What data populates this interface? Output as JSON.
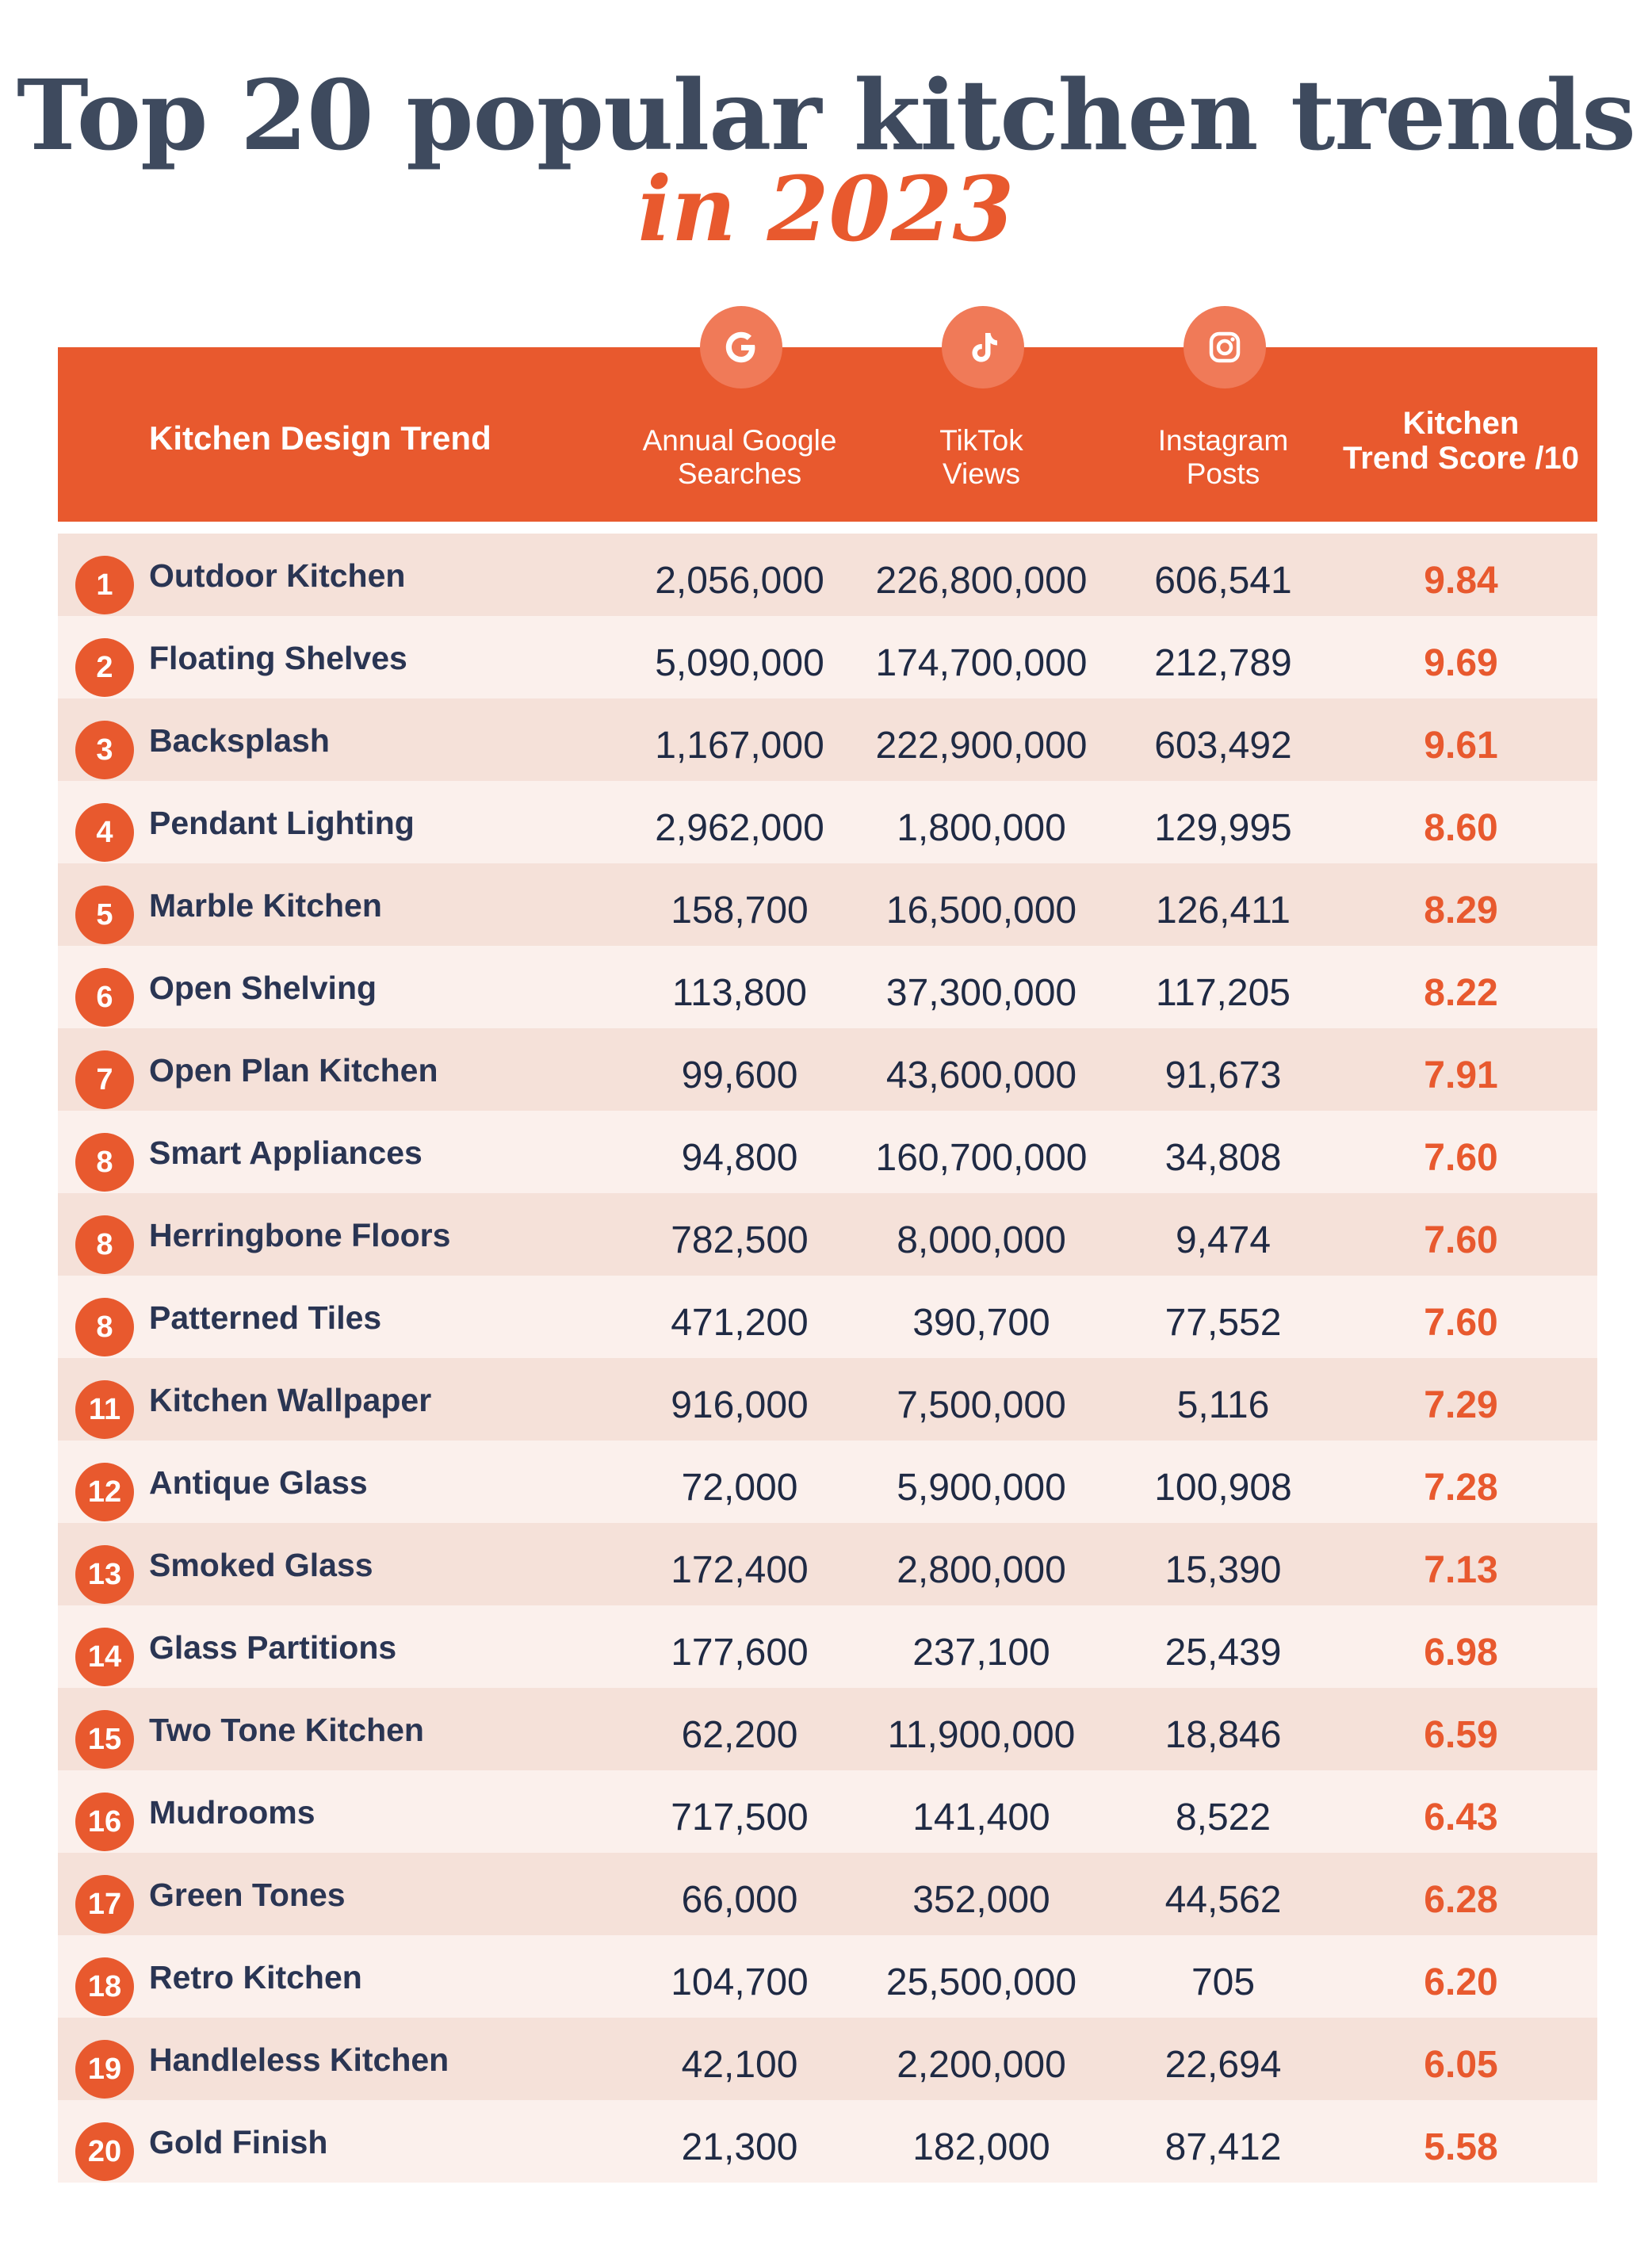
{
  "title": "Top 20 popular kitchen trends",
  "subtitle": "in 2023",
  "colors": {
    "accent": "#e8592e",
    "title": "#3e4a5e",
    "row_dark": "#f5e1d9",
    "row_light": "#fbf0ec"
  },
  "header": {
    "trend": "Kitchen Design Trend",
    "google_line1": "Annual Google",
    "google_line2": "Searches",
    "tiktok_line1": "TikTok",
    "tiktok_line2": "Views",
    "instagram_line1": "Instagram",
    "instagram_line2": "Posts",
    "score_line1": "Kitchen",
    "score_line2": "Trend Score /10",
    "icons": [
      "google-icon",
      "tiktok-icon",
      "instagram-icon"
    ]
  },
  "chart_data": {
    "type": "table",
    "title": "Top 20 popular kitchen trends",
    "subtitle": "in 2023",
    "columns": [
      "Kitchen Design Trend",
      "Annual Google Searches",
      "TikTok Views",
      "Instagram Posts",
      "Kitchen Trend Score /10"
    ],
    "rows": [
      {
        "rank": "1",
        "trend": "Outdoor Kitchen",
        "google": "2,056,000",
        "tiktok": "226,800,000",
        "instagram": "606,541",
        "score": "9.84"
      },
      {
        "rank": "2",
        "trend": "Floating Shelves",
        "google": "5,090,000",
        "tiktok": "174,700,000",
        "instagram": "212,789",
        "score": "9.69"
      },
      {
        "rank": "3",
        "trend": "Backsplash",
        "google": "1,167,000",
        "tiktok": "222,900,000",
        "instagram": "603,492",
        "score": "9.61"
      },
      {
        "rank": "4",
        "trend": "Pendant Lighting",
        "google": "2,962,000",
        "tiktok": "1,800,000",
        "instagram": "129,995",
        "score": "8.60"
      },
      {
        "rank": "5",
        "trend": "Marble Kitchen",
        "google": "158,700",
        "tiktok": "16,500,000",
        "instagram": "126,411",
        "score": "8.29"
      },
      {
        "rank": "6",
        "trend": "Open Shelving",
        "google": "113,800",
        "tiktok": "37,300,000",
        "instagram": "117,205",
        "score": "8.22"
      },
      {
        "rank": "7",
        "trend": "Open Plan Kitchen",
        "google": "99,600",
        "tiktok": "43,600,000",
        "instagram": "91,673",
        "score": "7.91"
      },
      {
        "rank": "8",
        "trend": "Smart Appliances",
        "google": "94,800",
        "tiktok": "160,700,000",
        "instagram": "34,808",
        "score": "7.60"
      },
      {
        "rank": "8",
        "trend": "Herringbone Floors",
        "google": "782,500",
        "tiktok": "8,000,000",
        "instagram": "9,474",
        "score": "7.60"
      },
      {
        "rank": "8",
        "trend": "Patterned Tiles",
        "google": "471,200",
        "tiktok": "390,700",
        "instagram": "77,552",
        "score": "7.60"
      },
      {
        "rank": "11",
        "trend": "Kitchen Wallpaper",
        "google": "916,000",
        "tiktok": "7,500,000",
        "instagram": "5,116",
        "score": "7.29"
      },
      {
        "rank": "12",
        "trend": "Antique Glass",
        "google": "72,000",
        "tiktok": "5,900,000",
        "instagram": "100,908",
        "score": "7.28"
      },
      {
        "rank": "13",
        "trend": "Smoked Glass",
        "google": "172,400",
        "tiktok": "2,800,000",
        "instagram": "15,390",
        "score": "7.13"
      },
      {
        "rank": "14",
        "trend": "Glass Partitions",
        "google": "177,600",
        "tiktok": "237,100",
        "instagram": "25,439",
        "score": "6.98"
      },
      {
        "rank": "15",
        "trend": "Two Tone Kitchen",
        "google": "62,200",
        "tiktok": "11,900,000",
        "instagram": "18,846",
        "score": "6.59"
      },
      {
        "rank": "16",
        "trend": "Mudrooms",
        "google": "717,500",
        "tiktok": "141,400",
        "instagram": "8,522",
        "score": "6.43"
      },
      {
        "rank": "17",
        "trend": "Green Tones",
        "google": "66,000",
        "tiktok": "352,000",
        "instagram": "44,562",
        "score": "6.28"
      },
      {
        "rank": "18",
        "trend": "Retro Kitchen",
        "google": "104,700",
        "tiktok": "25,500,000",
        "instagram": "705",
        "score": "6.20"
      },
      {
        "rank": "19",
        "trend": "Handleless Kitchen",
        "google": "42,100",
        "tiktok": "2,200,000",
        "instagram": "22,694",
        "score": "6.05"
      },
      {
        "rank": "20",
        "trend": "Gold Finish",
        "google": "21,300",
        "tiktok": "182,000",
        "instagram": "87,412",
        "score": "5.58"
      }
    ]
  }
}
